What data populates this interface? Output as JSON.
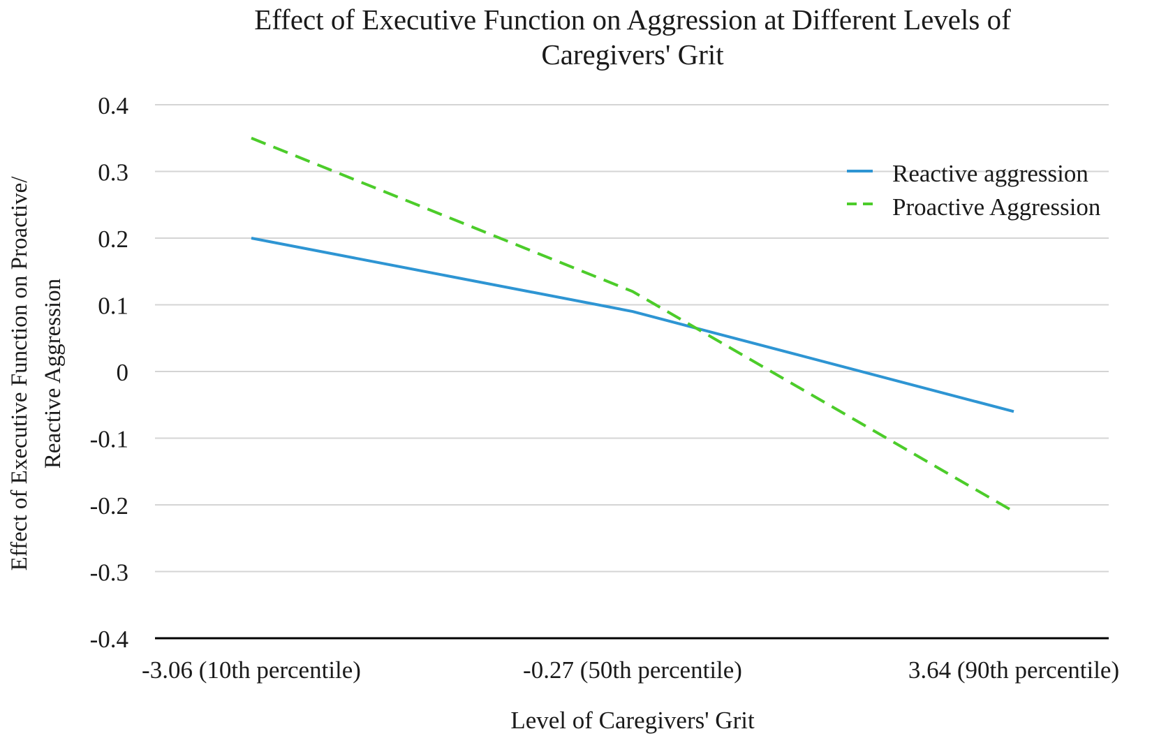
{
  "chart_data": {
    "type": "line",
    "title": "Effect of Executive Function on Aggression at Different Levels of Caregivers' Grit",
    "title_lines": [
      "Effect of Executive Function on Aggression at Different Levels of",
      "Caregivers' Grit"
    ],
    "xlabel": "Level of Caregivers' Grit",
    "ylabel": "Effect of Executive Function on Proactive/ Reactive Aggression",
    "ylabel_lines": [
      "Effect of Executive Function on Proactive/",
      "Reactive Aggression"
    ],
    "categories": [
      "-3.06 (10th percentile)",
      "-0.27 (50th percentile)",
      "3.64 (90th percentile)"
    ],
    "x_values": [
      -3.06,
      -0.27,
      3.64
    ],
    "ylim": [
      -0.4,
      0.4
    ],
    "yticks": [
      0.4,
      0.3,
      0.2,
      0.1,
      0,
      -0.1,
      -0.2,
      -0.3,
      -0.4
    ],
    "ytick_labels": [
      "0.4",
      "0.3",
      "0.2",
      "0.1",
      "0",
      "-0.1",
      "-0.2",
      "-0.3",
      "-0.4"
    ],
    "grid": true,
    "legend_position": "top-right",
    "series": [
      {
        "name": "Reactive aggression",
        "values": [
          0.2,
          0.09,
          -0.06
        ],
        "color": "#2e95d3",
        "style": "solid"
      },
      {
        "name": "Proactive Aggression",
        "values": [
          0.35,
          0.12,
          -0.21
        ],
        "color": "#4ccc2a",
        "style": "dashed"
      }
    ]
  }
}
